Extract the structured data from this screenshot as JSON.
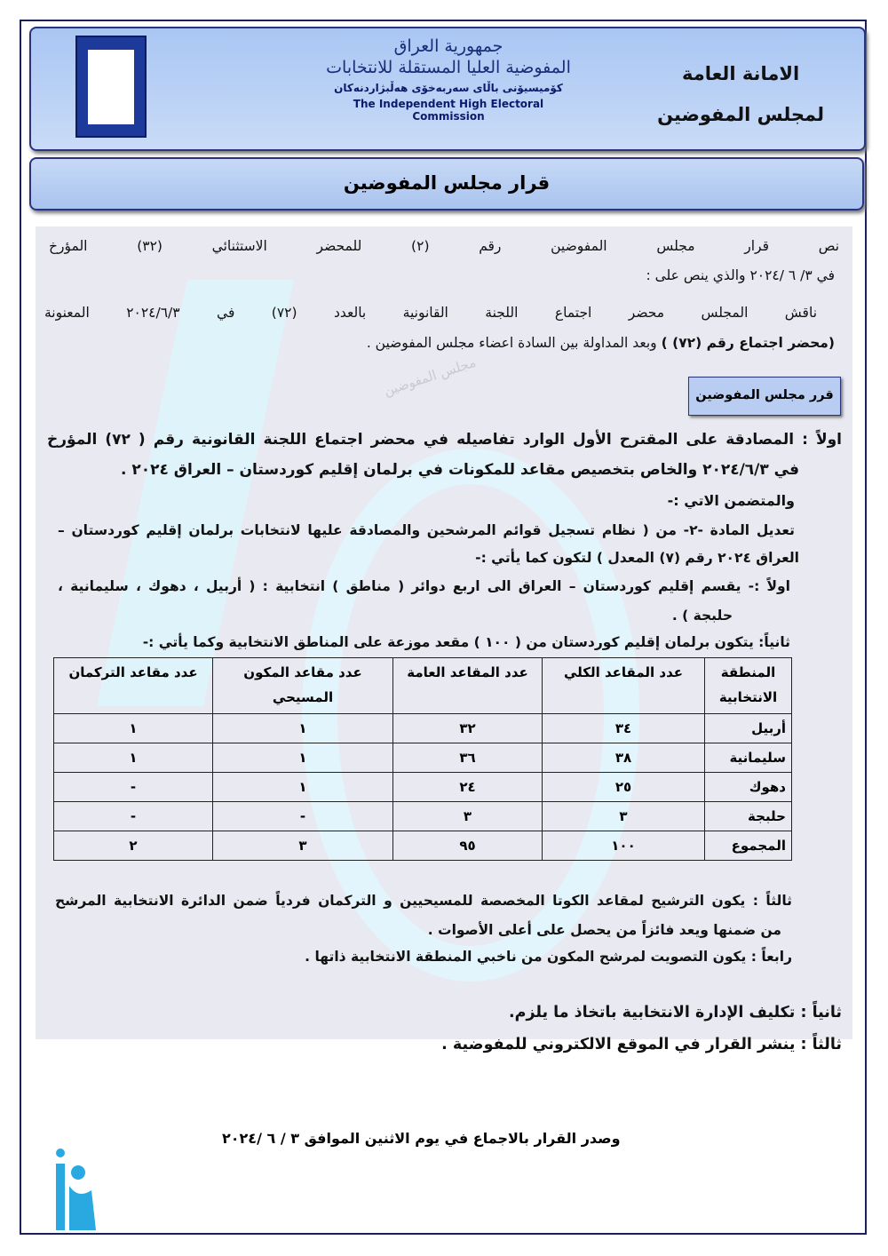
{
  "header": {
    "right_line1": "الامانة العامة",
    "right_line2": "لمجلس المفوضين",
    "center_line1": "جمهورية العراق",
    "center_line2": "المفوضية العليا المستقلة للانتخابات",
    "center_line3": "كۆمیسیۆنی باڵای سەربەخۆی هەڵبژاردنەکان",
    "center_line4": "The Independent High Electoral Commission"
  },
  "title": "قرار مجلس المفوضين",
  "intro": {
    "p1_line1": "نص قرار مجلس المفوضين رقم (٢) للمحضر الاستثنائي (٣٢) المؤرخ",
    "p1_line2": "في ٣/ ٦ /٢٠٢٤ والذي ينص على :",
    "p2_line1": "ناقش المجلس محضر اجتماع اللجنة القانونية بالعدد (٧٢) في ٢٠٢٤/٦/٣ المعنونة",
    "p2_line2_bold": "(محضر اجتماع رقم (٧٢) )",
    "p2_line2_rest": " وبعد المداولة بين السادة اعضاء مجلس المفوضين ."
  },
  "decision_label": "قرر مجلس المفوضين",
  "watermark_text": "مجلس المفوضين",
  "items": {
    "first_line1": "اولاً : المصادقة على المقترح الأول الوارد تفاصيله  في محضر اجتماع اللجنة القانونية رقم ( ٧٢) المؤرخ",
    "first_line2": "في ٢٠٢٤/٦/٣ والخاص بتخصيص مقاعد للمكونات في برلمان إقليم كوردستان – العراق ٢٠٢٤ .",
    "first_line3": "والمتضمن الاتي :-",
    "amend_line1": "تعديل المادة -٢- من ( نظام تسجيل قوائم المرشحين والمصادقة عليها لانتخابات برلمان إقليم كوردستان –",
    "amend_line2": "العراق ٢٠٢٤ رقم (٧) المعدل ) لتكون كما يأتي :-",
    "sub1_line1": "اولاً :- يقسم إقليم كوردستان – العراق الى اربع دوائر ( مناطق ) انتخابية : ( أربيل ، دهوك ، سليمانية ،",
    "sub1_line2": "حلبجة ) .",
    "sub2": "ثانياً: يتكون برلمان إقليم كوردستان من ( ١٠٠ ) مقعد موزعة على المناطق الانتخابية وكما يأتي :-",
    "sub3_line1": "ثالثاً : يكون الترشيح لمقاعد الكوتا المخصصة للمسيحيين و التركمان فردياً ضمن الدائرة الانتخابية المرشح",
    "sub3_line2": "من   ضمنها ويعد فائزاً من يحصل على أعلى الأصوات .",
    "sub4": "رابعاً : يكون التصويت لمرشح المكون من ناخبي المنطقة الانتخابية ذاتها .",
    "second": "ثانياً : تكليف الإدارة الانتخابية باتخاذ ما يلزم.",
    "third": "ثالثاً : ينشر القرار في الموقع الالكتروني للمفوضية ."
  },
  "table": {
    "headers": [
      "المنطقة الانتخابية",
      "عدد المقاعد الكلي",
      "عدد المقاعد العامة",
      "عدد مقاعد المكون المسيحي",
      "عدد مقاعد التركمان"
    ],
    "rows": [
      [
        "أربيل",
        "٣٤",
        "٣٢",
        "١",
        "١"
      ],
      [
        "سليمانية",
        "٣٨",
        "٣٦",
        "١",
        "١"
      ],
      [
        "دهوك",
        "٢٥",
        "٢٤",
        "١",
        "-"
      ],
      [
        "حلبجة",
        "٣",
        "٣",
        "-",
        "-"
      ],
      [
        "المجموع",
        "١٠٠",
        "٩٥",
        "٣",
        "٢"
      ]
    ]
  },
  "footer": "وصدر القرار بالاجماع في يوم الاثنين الموافق  ٣ / ٦ /٢٠٢٤"
}
